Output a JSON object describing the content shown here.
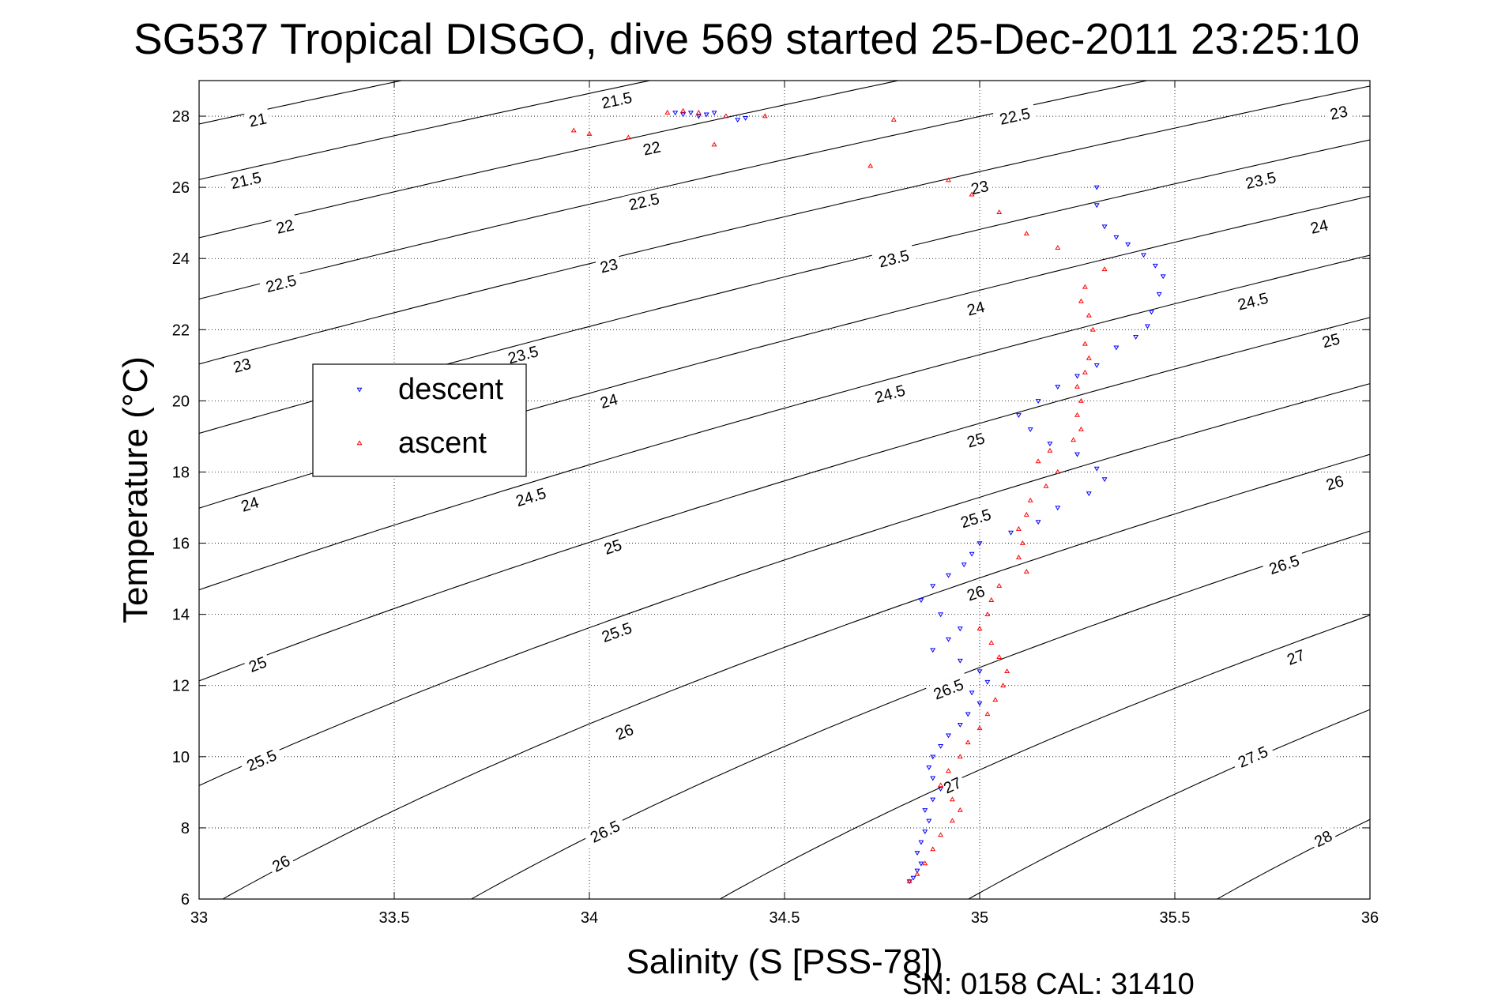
{
  "chart_data": {
    "type": "scatter",
    "title": "SG537 Tropical DISGO, dive 569 started 25-Dec-2011 23:25:10",
    "xlabel": "Salinity (S [PSS-78])",
    "ylabel": "Temperature (°C)",
    "xlim": [
      33,
      36
    ],
    "ylim": [
      6,
      29
    ],
    "xticks": [
      33,
      33.5,
      34,
      34.5,
      35,
      35.5,
      36
    ],
    "xtick_labels": [
      "33",
      "33.5",
      "34",
      "34.5",
      "35",
      "35.5",
      "36"
    ],
    "yticks": [
      6,
      8,
      10,
      12,
      14,
      16,
      18,
      20,
      22,
      24,
      26,
      28
    ],
    "ytick_labels": [
      "6",
      "8",
      "10",
      "12",
      "14",
      "16",
      "18",
      "20",
      "22",
      "24",
      "26",
      "28"
    ],
    "grid": true,
    "legend_position": "upper-left",
    "footer": "SN: 0158  CAL: 31410",
    "contours": {
      "description": "sigma-theta isopycnals",
      "levels": [
        21,
        21.5,
        22,
        22.5,
        23,
        23.5,
        24,
        24.5,
        25,
        25.5,
        26,
        26.5,
        27,
        27.5,
        28
      ],
      "color": "#000000",
      "labels": [
        {
          "text": "21",
          "s": 33.15,
          "t": 27.9
        },
        {
          "text": "21.5",
          "s": 34.07,
          "t": 28.45
        },
        {
          "text": "21.5",
          "s": 33.12,
          "t": 26.2
        },
        {
          "text": "22",
          "s": 34.16,
          "t": 27.1
        },
        {
          "text": "22.5",
          "s": 35.09,
          "t": 28.0
        },
        {
          "text": "23",
          "s": 35.92,
          "t": 28.1
        },
        {
          "text": "22",
          "s": 33.22,
          "t": 24.9
        },
        {
          "text": "22.5",
          "s": 34.14,
          "t": 25.6
        },
        {
          "text": "23",
          "s": 35.0,
          "t": 26.0
        },
        {
          "text": "23.5",
          "s": 35.72,
          "t": 26.2
        },
        {
          "text": "22.5",
          "s": 33.21,
          "t": 23.3
        },
        {
          "text": "23",
          "s": 34.05,
          "t": 23.8
        },
        {
          "text": "23.5",
          "s": 34.78,
          "t": 24.0
        },
        {
          "text": "24",
          "s": 35.87,
          "t": 24.9
        },
        {
          "text": "23",
          "s": 33.11,
          "t": 21.0
        },
        {
          "text": "23.5",
          "s": 33.83,
          "t": 21.3
        },
        {
          "text": "24",
          "s": 34.99,
          "t": 22.6
        },
        {
          "text": "24.5",
          "s": 35.7,
          "t": 22.8
        },
        {
          "text": "24",
          "s": 34.05,
          "t": 20.0
        },
        {
          "text": "24.5",
          "s": 34.77,
          "t": 20.2
        },
        {
          "text": "25",
          "s": 35.9,
          "t": 21.7
        },
        {
          "text": "24",
          "s": 33.13,
          "t": 17.1
        },
        {
          "text": "24.5",
          "s": 33.85,
          "t": 17.3
        },
        {
          "text": "25",
          "s": 34.99,
          "t": 18.9
        },
        {
          "text": "26",
          "s": 35.91,
          "t": 17.7
        },
        {
          "text": "25",
          "s": 34.06,
          "t": 15.9
        },
        {
          "text": "25.5",
          "s": 34.99,
          "t": 16.7
        },
        {
          "text": "26.5",
          "s": 35.78,
          "t": 15.4
        },
        {
          "text": "26",
          "s": 34.99,
          "t": 14.6
        },
        {
          "text": "25",
          "s": 33.15,
          "t": 12.6
        },
        {
          "text": "25.5",
          "s": 34.07,
          "t": 13.5
        },
        {
          "text": "27",
          "s": 35.81,
          "t": 12.8
        },
        {
          "text": "26.5",
          "s": 34.92,
          "t": 11.9
        },
        {
          "text": "26",
          "s": 34.09,
          "t": 10.7
        },
        {
          "text": "25.5",
          "s": 33.16,
          "t": 9.9
        },
        {
          "text": "27.5",
          "s": 35.7,
          "t": 10.0
        },
        {
          "text": "27",
          "s": 34.93,
          "t": 9.2
        },
        {
          "text": "26.5",
          "s": 34.04,
          "t": 7.9
        },
        {
          "text": "28",
          "s": 35.88,
          "t": 7.7
        },
        {
          "text": "26",
          "s": 33.21,
          "t": 7.0
        }
      ]
    },
    "series": [
      {
        "name": "descent",
        "marker": "triangle-down",
        "color": "#0000ff",
        "points": [
          [
            34.22,
            28.1
          ],
          [
            34.24,
            28.05
          ],
          [
            34.26,
            28.1
          ],
          [
            34.28,
            28.0
          ],
          [
            34.3,
            28.05
          ],
          [
            34.32,
            28.1
          ],
          [
            34.38,
            27.9
          ],
          [
            34.4,
            27.95
          ],
          [
            35.3,
            26.0
          ],
          [
            35.3,
            25.5
          ],
          [
            35.32,
            24.9
          ],
          [
            35.35,
            24.6
          ],
          [
            35.38,
            24.4
          ],
          [
            35.42,
            24.1
          ],
          [
            35.45,
            23.8
          ],
          [
            35.47,
            23.5
          ],
          [
            35.46,
            23.0
          ],
          [
            35.44,
            22.5
          ],
          [
            35.43,
            22.1
          ],
          [
            35.4,
            21.8
          ],
          [
            35.35,
            21.5
          ],
          [
            35.3,
            21.0
          ],
          [
            35.25,
            20.7
          ],
          [
            35.2,
            20.4
          ],
          [
            35.15,
            20.0
          ],
          [
            35.1,
            19.6
          ],
          [
            35.13,
            19.2
          ],
          [
            35.18,
            18.8
          ],
          [
            35.25,
            18.5
          ],
          [
            35.3,
            18.1
          ],
          [
            35.32,
            17.8
          ],
          [
            35.28,
            17.4
          ],
          [
            35.2,
            17.0
          ],
          [
            35.15,
            16.6
          ],
          [
            35.08,
            16.3
          ],
          [
            35.0,
            16.0
          ],
          [
            34.98,
            15.7
          ],
          [
            34.96,
            15.4
          ],
          [
            34.92,
            15.1
          ],
          [
            34.88,
            14.8
          ],
          [
            34.85,
            14.4
          ],
          [
            34.9,
            14.0
          ],
          [
            34.95,
            13.6
          ],
          [
            34.92,
            13.3
          ],
          [
            34.88,
            13.0
          ],
          [
            34.95,
            12.7
          ],
          [
            35.0,
            12.4
          ],
          [
            35.02,
            12.1
          ],
          [
            34.98,
            11.8
          ],
          [
            35.0,
            11.5
          ],
          [
            34.97,
            11.2
          ],
          [
            34.95,
            10.9
          ],
          [
            34.92,
            10.6
          ],
          [
            34.9,
            10.3
          ],
          [
            34.88,
            10.0
          ],
          [
            34.87,
            9.7
          ],
          [
            34.88,
            9.4
          ],
          [
            34.9,
            9.1
          ],
          [
            34.88,
            8.8
          ],
          [
            34.86,
            8.5
          ],
          [
            34.87,
            8.2
          ],
          [
            34.86,
            7.9
          ],
          [
            34.85,
            7.6
          ],
          [
            34.84,
            7.3
          ],
          [
            34.85,
            7.0
          ],
          [
            34.84,
            6.8
          ],
          [
            34.83,
            6.6
          ],
          [
            34.82,
            6.5
          ]
        ]
      },
      {
        "name": "ascent",
        "marker": "triangle-up",
        "color": "#ff0000",
        "points": [
          [
            33.96,
            27.6
          ],
          [
            34.0,
            27.5
          ],
          [
            34.1,
            27.4
          ],
          [
            34.2,
            28.1
          ],
          [
            34.24,
            28.15
          ],
          [
            34.28,
            28.1
          ],
          [
            34.32,
            27.2
          ],
          [
            34.35,
            28.0
          ],
          [
            34.45,
            28.0
          ],
          [
            34.78,
            27.9
          ],
          [
            34.72,
            26.6
          ],
          [
            34.92,
            26.2
          ],
          [
            34.98,
            25.8
          ],
          [
            35.05,
            25.3
          ],
          [
            35.12,
            24.7
          ],
          [
            35.2,
            24.3
          ],
          [
            35.32,
            23.7
          ],
          [
            35.27,
            23.2
          ],
          [
            35.26,
            22.8
          ],
          [
            35.28,
            22.4
          ],
          [
            35.29,
            22.0
          ],
          [
            35.27,
            21.6
          ],
          [
            35.28,
            21.2
          ],
          [
            35.27,
            20.8
          ],
          [
            35.25,
            20.4
          ],
          [
            35.26,
            20.0
          ],
          [
            35.25,
            19.6
          ],
          [
            35.26,
            19.2
          ],
          [
            35.24,
            18.9
          ],
          [
            35.18,
            18.6
          ],
          [
            35.15,
            18.3
          ],
          [
            35.2,
            18.0
          ],
          [
            35.17,
            17.6
          ],
          [
            35.13,
            17.2
          ],
          [
            35.12,
            16.8
          ],
          [
            35.1,
            16.4
          ],
          [
            35.11,
            16.0
          ],
          [
            35.1,
            15.6
          ],
          [
            35.12,
            15.2
          ],
          [
            35.05,
            14.8
          ],
          [
            35.03,
            14.4
          ],
          [
            35.02,
            14.0
          ],
          [
            35.0,
            13.6
          ],
          [
            35.03,
            13.2
          ],
          [
            35.05,
            12.8
          ],
          [
            35.07,
            12.4
          ],
          [
            35.06,
            12.0
          ],
          [
            35.04,
            11.6
          ],
          [
            35.02,
            11.2
          ],
          [
            35.0,
            10.8
          ],
          [
            34.97,
            10.4
          ],
          [
            34.95,
            10.0
          ],
          [
            34.92,
            9.6
          ],
          [
            34.9,
            9.2
          ],
          [
            34.93,
            8.8
          ],
          [
            34.95,
            8.5
          ],
          [
            34.93,
            8.2
          ],
          [
            34.9,
            7.8
          ],
          [
            34.88,
            7.4
          ],
          [
            34.86,
            7.0
          ],
          [
            34.84,
            6.7
          ],
          [
            34.82,
            6.5
          ]
        ]
      }
    ]
  }
}
